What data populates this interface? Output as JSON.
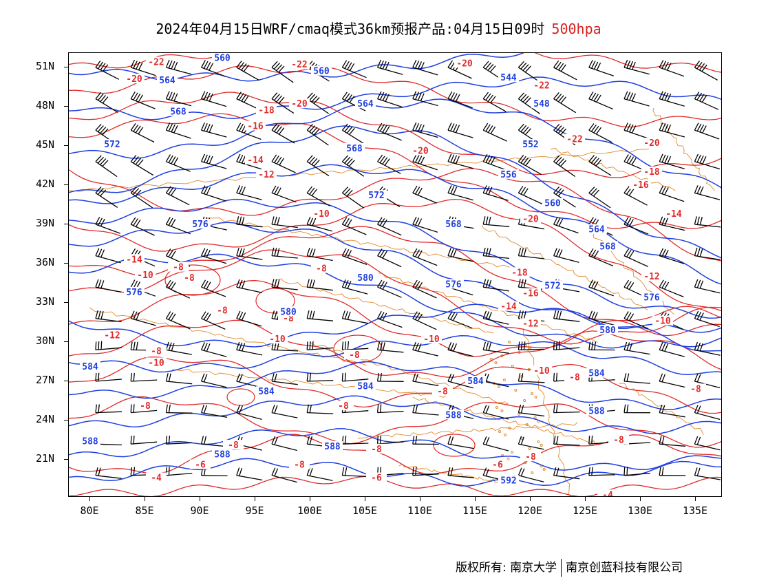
{
  "title": {
    "main": "2024年04月15日WRF/cmaq模式36km预报产品:04月15日09时",
    "level": "500hpa"
  },
  "axes": {
    "lat_labels": [
      "51N",
      "48N",
      "45N",
      "42N",
      "39N",
      "36N",
      "33N",
      "30N",
      "27N",
      "24N",
      "21N"
    ],
    "lon_labels": [
      "80E",
      "85E",
      "90E",
      "95E",
      "100E",
      "105E",
      "110E",
      "115E",
      "120E",
      "125E",
      "130E",
      "135E"
    ]
  },
  "colors": {
    "geopotential": "#1f3fe0",
    "temperature": "#e02a2a",
    "coastline": "#e08a2a",
    "wind_barb": "#000000"
  },
  "contour_labels": {
    "geopotential": [
      {
        "text": "560",
        "lon": 92,
        "lat": 51.7
      },
      {
        "text": "560",
        "lon": 101,
        "lat": 50.7
      },
      {
        "text": "564",
        "lon": 87,
        "lat": 50.0
      },
      {
        "text": "568",
        "lon": 88,
        "lat": 47.6
      },
      {
        "text": "564",
        "lon": 105,
        "lat": 48.2
      },
      {
        "text": "544",
        "lon": 118,
        "lat": 50.2
      },
      {
        "text": "548",
        "lon": 121,
        "lat": 48.2
      },
      {
        "text": "572",
        "lon": 82,
        "lat": 45.1
      },
      {
        "text": "568",
        "lon": 104,
        "lat": 44.8
      },
      {
        "text": "552",
        "lon": 120,
        "lat": 45.1
      },
      {
        "text": "556",
        "lon": 118,
        "lat": 42.8
      },
      {
        "text": "572",
        "lon": 106,
        "lat": 41.2
      },
      {
        "text": "560",
        "lon": 122,
        "lat": 40.6
      },
      {
        "text": "576",
        "lon": 90,
        "lat": 39.0
      },
      {
        "text": "568",
        "lon": 113,
        "lat": 39.0
      },
      {
        "text": "564",
        "lon": 126,
        "lat": 38.6
      },
      {
        "text": "568",
        "lon": 127,
        "lat": 37.3
      },
      {
        "text": "580",
        "lon": 105,
        "lat": 34.9
      },
      {
        "text": "576",
        "lon": 113,
        "lat": 34.4
      },
      {
        "text": "572",
        "lon": 122,
        "lat": 34.3
      },
      {
        "text": "576",
        "lon": 84,
        "lat": 33.8
      },
      {
        "text": "576",
        "lon": 131,
        "lat": 33.4
      },
      {
        "text": "580",
        "lon": 98,
        "lat": 32.3
      },
      {
        "text": "580",
        "lon": 127,
        "lat": 30.9
      },
      {
        "text": "584",
        "lon": 80,
        "lat": 28.1
      },
      {
        "text": "584",
        "lon": 126,
        "lat": 27.6
      },
      {
        "text": "584",
        "lon": 115,
        "lat": 27.0
      },
      {
        "text": "584",
        "lon": 96,
        "lat": 26.2
      },
      {
        "text": "584",
        "lon": 105,
        "lat": 26.6
      },
      {
        "text": "588",
        "lon": 113,
        "lat": 24.4
      },
      {
        "text": "588",
        "lon": 126,
        "lat": 24.7
      },
      {
        "text": "588",
        "lon": 80,
        "lat": 22.4
      },
      {
        "text": "588",
        "lon": 92,
        "lat": 21.4
      },
      {
        "text": "588",
        "lon": 102,
        "lat": 22.0
      },
      {
        "text": "592",
        "lon": 118,
        "lat": 19.4
      }
    ],
    "temperature": [
      {
        "text": "-22",
        "lon": 86,
        "lat": 51.4
      },
      {
        "text": "-20",
        "lon": 84,
        "lat": 50.1
      },
      {
        "text": "-22",
        "lon": 99,
        "lat": 51.2
      },
      {
        "text": "-20",
        "lon": 114,
        "lat": 51.3
      },
      {
        "text": "-22",
        "lon": 121,
        "lat": 49.6
      },
      {
        "text": "-18",
        "lon": 96,
        "lat": 47.7
      },
      {
        "text": "-20",
        "lon": 99,
        "lat": 48.2
      },
      {
        "text": "-16",
        "lon": 95,
        "lat": 46.5
      },
      {
        "text": "-20",
        "lon": 110,
        "lat": 44.6
      },
      {
        "text": "-22",
        "lon": 124,
        "lat": 45.5
      },
      {
        "text": "-20",
        "lon": 131,
        "lat": 45.2
      },
      {
        "text": "-14",
        "lon": 95,
        "lat": 43.9
      },
      {
        "text": "-18",
        "lon": 131,
        "lat": 43.0
      },
      {
        "text": "-12",
        "lon": 96,
        "lat": 42.8
      },
      {
        "text": "-16",
        "lon": 130,
        "lat": 42.0
      },
      {
        "text": "-10",
        "lon": 101,
        "lat": 39.8
      },
      {
        "text": "-20",
        "lon": 120,
        "lat": 39.4
      },
      {
        "text": "-14",
        "lon": 133,
        "lat": 39.8
      },
      {
        "text": "-14",
        "lon": 84,
        "lat": 36.3
      },
      {
        "text": "-8",
        "lon": 88,
        "lat": 35.7
      },
      {
        "text": "-10",
        "lon": 85,
        "lat": 35.1
      },
      {
        "text": "-8",
        "lon": 89,
        "lat": 34.9
      },
      {
        "text": "-8",
        "lon": 101,
        "lat": 35.6
      },
      {
        "text": "-18",
        "lon": 119,
        "lat": 35.3
      },
      {
        "text": "-12",
        "lon": 131,
        "lat": 35.0
      },
      {
        "text": "-16",
        "lon": 120,
        "lat": 33.7
      },
      {
        "text": "-14",
        "lon": 118,
        "lat": 32.7
      },
      {
        "text": "-8",
        "lon": 92,
        "lat": 32.4
      },
      {
        "text": "-8",
        "lon": 98,
        "lat": 31.8
      },
      {
        "text": "-12",
        "lon": 120,
        "lat": 31.4
      },
      {
        "text": "-10",
        "lon": 132,
        "lat": 31.6
      },
      {
        "text": "-12",
        "lon": 82,
        "lat": 30.5
      },
      {
        "text": "-10",
        "lon": 97,
        "lat": 30.2
      },
      {
        "text": "-10",
        "lon": 111,
        "lat": 30.2
      },
      {
        "text": "-8",
        "lon": 86,
        "lat": 29.3
      },
      {
        "text": "-8",
        "lon": 104,
        "lat": 29.0
      },
      {
        "text": "-10",
        "lon": 86,
        "lat": 28.4
      },
      {
        "text": "-10",
        "lon": 121,
        "lat": 27.8
      },
      {
        "text": "-8",
        "lon": 124,
        "lat": 27.3
      },
      {
        "text": "-8",
        "lon": 135,
        "lat": 26.4
      },
      {
        "text": "-8",
        "lon": 112,
        "lat": 26.2
      },
      {
        "text": "-8",
        "lon": 85,
        "lat": 25.1
      },
      {
        "text": "-8",
        "lon": 103,
        "lat": 25.1
      },
      {
        "text": "-8",
        "lon": 128,
        "lat": 22.5
      },
      {
        "text": "-8",
        "lon": 93,
        "lat": 22.1
      },
      {
        "text": "-8",
        "lon": 106,
        "lat": 21.8
      },
      {
        "text": "-8",
        "lon": 120,
        "lat": 21.2
      },
      {
        "text": "-8",
        "lon": 99,
        "lat": 20.6
      },
      {
        "text": "-6",
        "lon": 90,
        "lat": 20.6
      },
      {
        "text": "-6",
        "lon": 117,
        "lat": 20.6
      },
      {
        "text": "-4",
        "lon": 86,
        "lat": 19.6
      },
      {
        "text": "-6",
        "lon": 106,
        "lat": 19.6
      },
      {
        "text": "-4",
        "lon": 127,
        "lat": 18.3
      }
    ]
  },
  "footer": {
    "left": "版权所有: 南京大学",
    "right": "南京创蓝科技有限公司"
  }
}
